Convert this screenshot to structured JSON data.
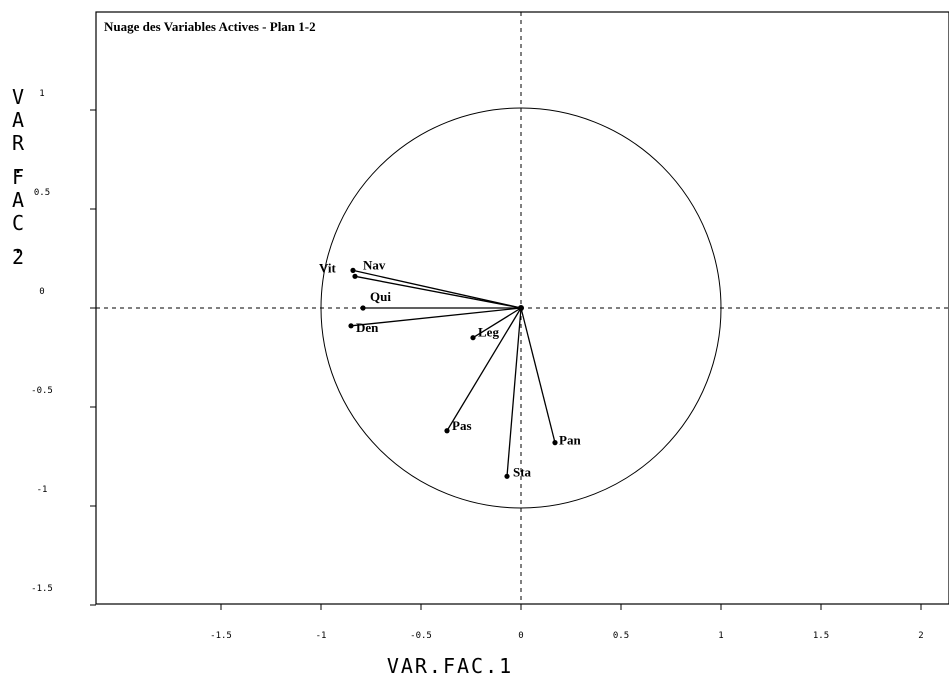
{
  "chart_data": {
    "type": "scatter",
    "title": "Nuage des Variables Actives - Plan 1-2",
    "xlabel": "VAR.FAC.1",
    "ylabel": "VAR.FAC.2",
    "xlim": [
      -2.15,
      2.15
    ],
    "ylim": [
      -1.5,
      1.45
    ],
    "xticks": [
      -1.5,
      -1,
      -0.5,
      0,
      0.5,
      1,
      1.5,
      2
    ],
    "yticks": [
      1,
      0.5,
      0,
      -0.5,
      -1,
      -1.5
    ],
    "xtick_labels": [
      "-1.5",
      "-1",
      "-0.5",
      "0",
      "0.5",
      "1",
      "1.5",
      "2"
    ],
    "ytick_labels": [
      "1",
      "0.5",
      "0",
      "-0.5",
      "-1",
      "-1.5"
    ],
    "correlation_circle_radius": 1,
    "reference_lines": "dashed at x=0 and y=0",
    "points": [
      {
        "label": "Vit",
        "x": -0.84,
        "y": 0.19
      },
      {
        "label": "Nav",
        "x": -0.83,
        "y": 0.16
      },
      {
        "label": "Qui",
        "x": -0.79,
        "y": 0.0
      },
      {
        "label": "Den",
        "x": -0.85,
        "y": -0.09
      },
      {
        "label": "Leg",
        "x": -0.24,
        "y": -0.15
      },
      {
        "label": "Pas",
        "x": -0.37,
        "y": -0.62
      },
      {
        "label": "Pan",
        "x": 0.17,
        "y": -0.68
      },
      {
        "label": "Sta",
        "x": -0.07,
        "y": -0.85
      }
    ]
  }
}
